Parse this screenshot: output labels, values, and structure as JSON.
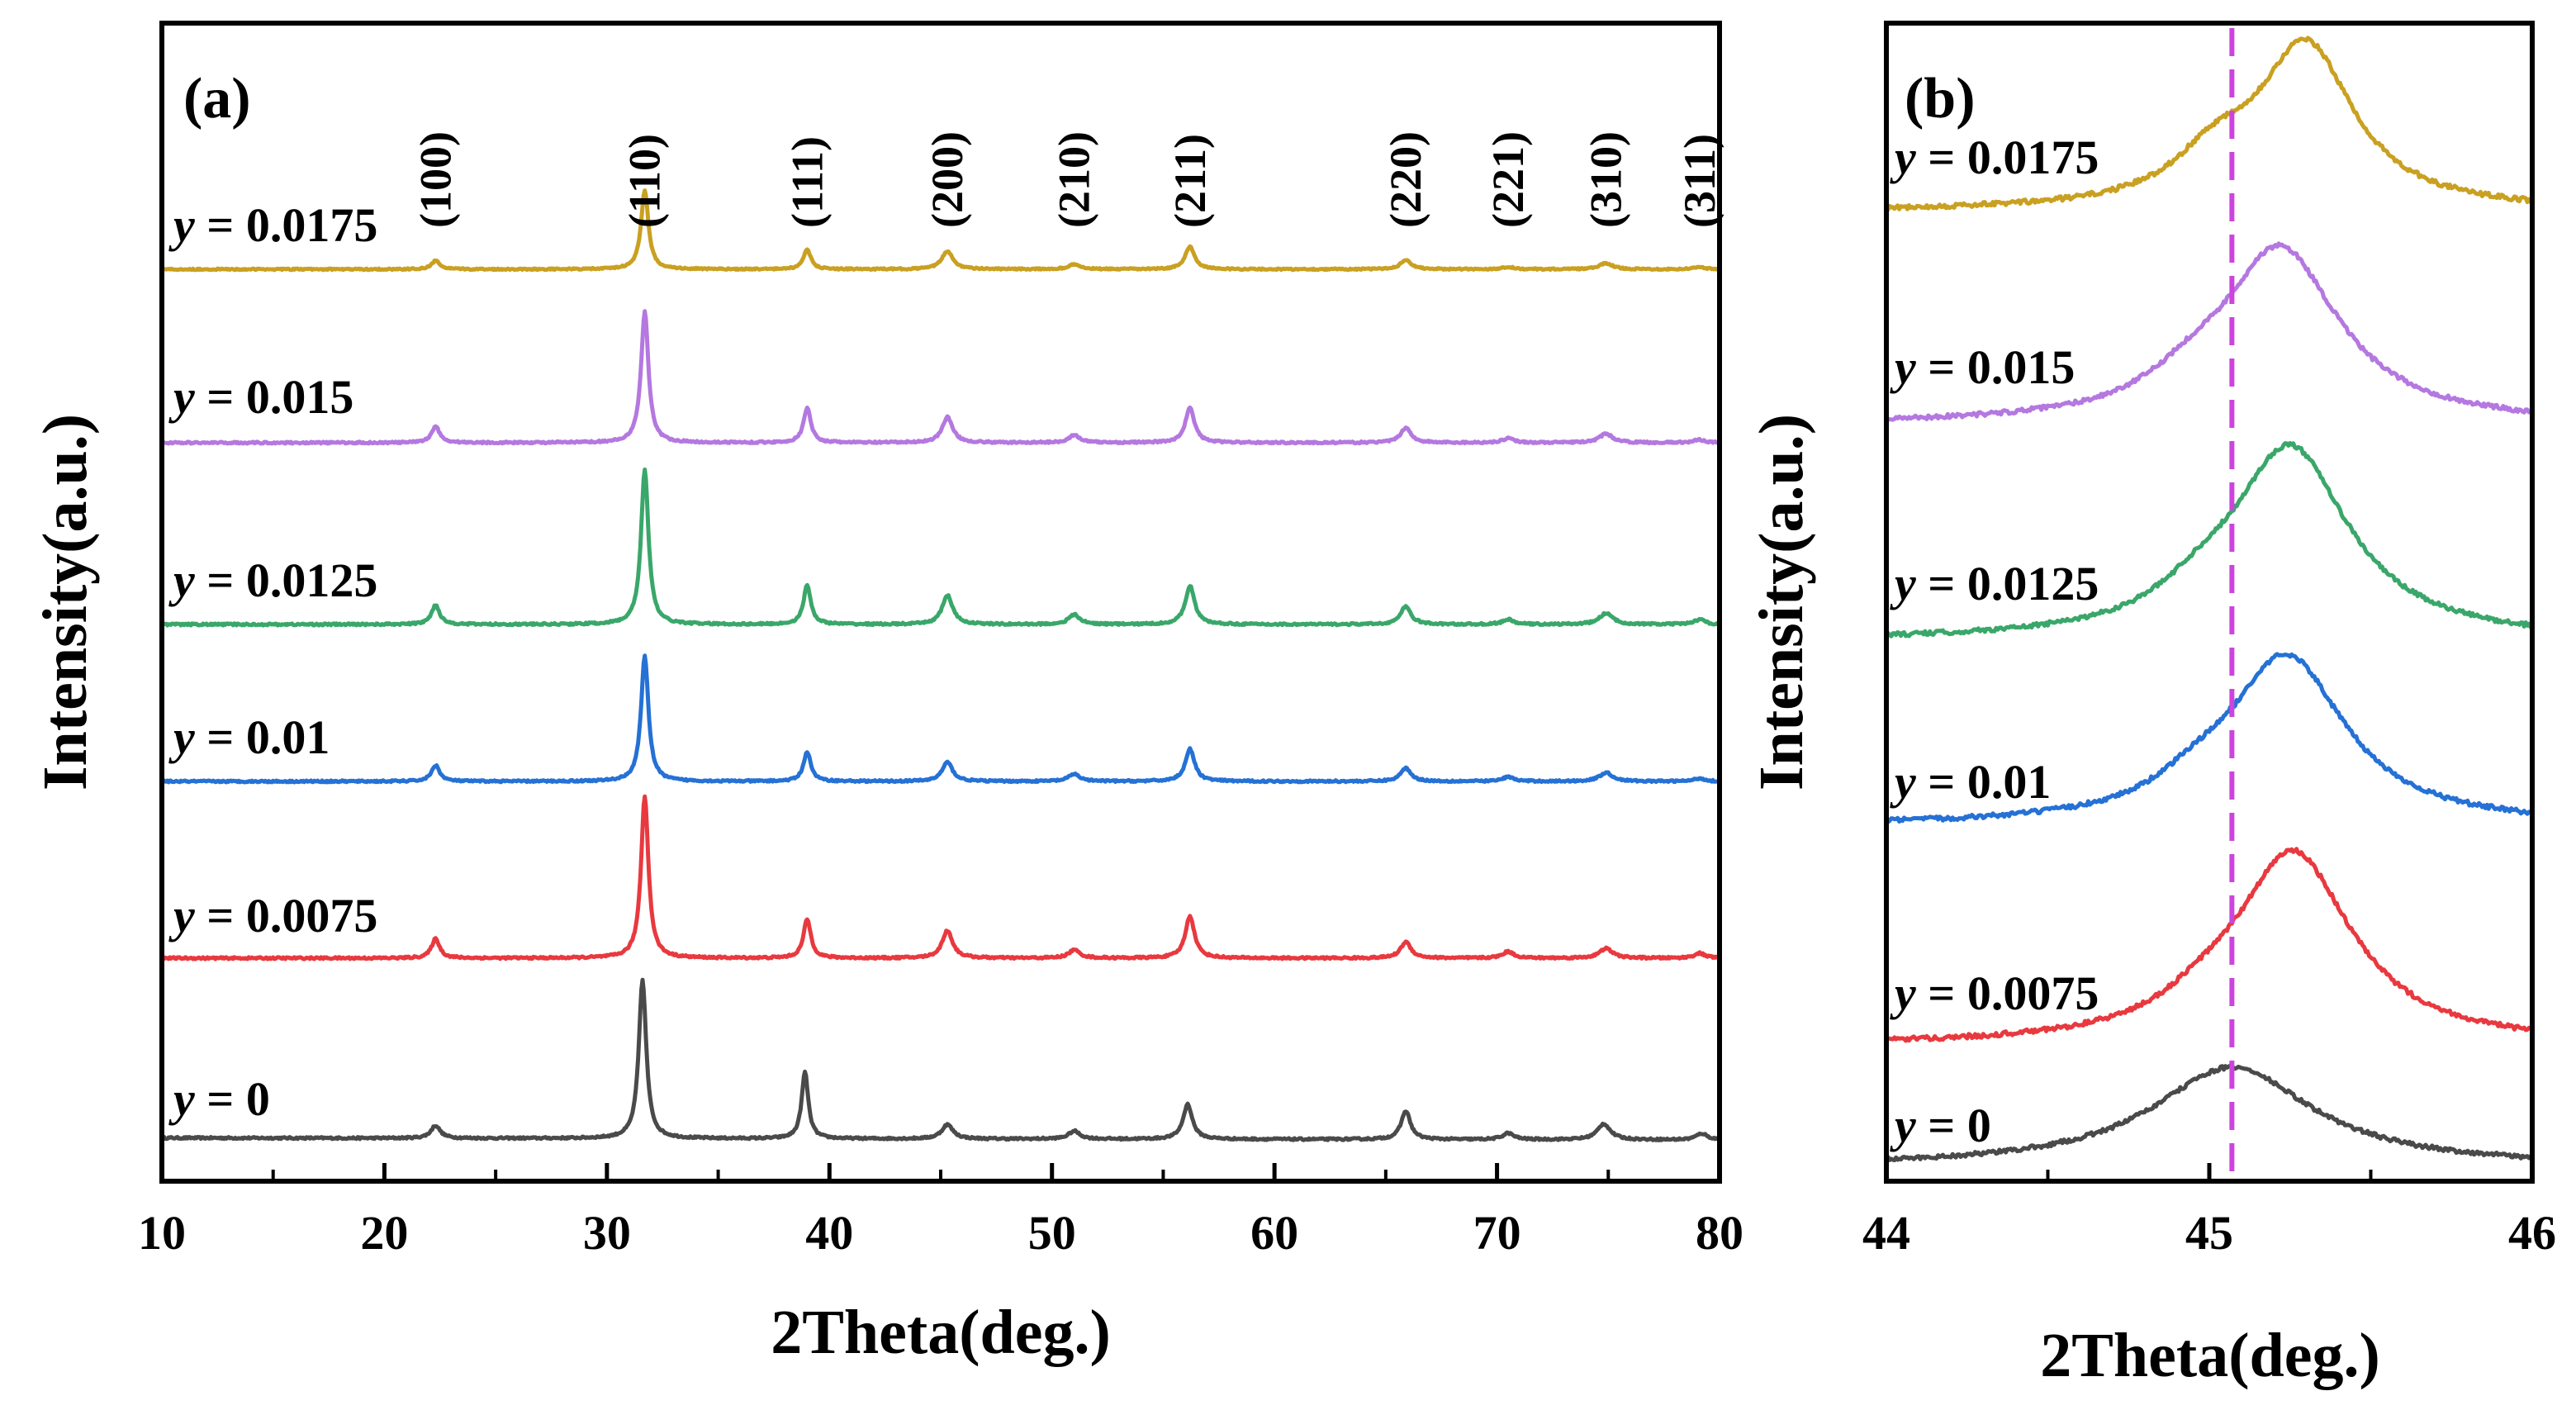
{
  "chart_data": [
    {
      "type": "line",
      "panel_label": "(a)",
      "title": "",
      "xlabel": "2Theta(deg.)",
      "ylabel": "Intensity(a.u.)",
      "xlim": [
        10,
        80
      ],
      "xticks": [
        10,
        20,
        30,
        40,
        50,
        60,
        70,
        80
      ],
      "xtick_labels": [
        "10",
        "20",
        "30",
        "40",
        "50",
        "60",
        "70",
        "80"
      ],
      "y_units": "arbitrary (offset stacked)",
      "series_label_prefix": "y",
      "peak_labels": [
        {
          "hkl": "(100)",
          "x": 22.3
        },
        {
          "hkl": "(110)",
          "x": 31.7
        },
        {
          "hkl": "(111)",
          "x": 39.0
        },
        {
          "hkl": "(200)",
          "x": 45.3
        },
        {
          "hkl": "(210)",
          "x": 51.0
        },
        {
          "hkl": "(211)",
          "x": 56.2
        },
        {
          "hkl": "(220)",
          "x": 65.9
        },
        {
          "hkl": "(221)",
          "x": 70.5
        },
        {
          "hkl": "(310)",
          "x": 74.9
        },
        {
          "hkl": "(311)",
          "x": 79.1
        }
      ],
      "series": [
        {
          "name": "y = 0",
          "value_text": "0",
          "color": "#4a4a4a",
          "baseline": 0.0,
          "slope": 0.05,
          "peaks": [
            [
              22.3,
              0.08,
              0.25
            ],
            [
              31.6,
              1.0,
              0.2
            ],
            [
              38.9,
              0.42,
              0.18
            ],
            [
              45.3,
              0.09,
              0.3
            ],
            [
              51.0,
              0.05,
              0.3
            ],
            [
              56.1,
              0.22,
              0.25
            ],
            [
              65.9,
              0.18,
              0.25
            ],
            [
              70.5,
              0.04,
              0.3
            ],
            [
              74.8,
              0.1,
              0.35
            ],
            [
              79.2,
              0.04,
              0.3
            ]
          ]
        },
        {
          "name": "y = 0.0075",
          "value_text": "0.0075",
          "color": "#e8393f",
          "baseline": 1.0,
          "slope": 0.0,
          "peaks": [
            [
              22.3,
              0.12,
              0.22
            ],
            [
              31.7,
              1.0,
              0.2
            ],
            [
              39.0,
              0.24,
              0.2
            ],
            [
              45.3,
              0.17,
              0.28
            ],
            [
              51.0,
              0.05,
              0.3
            ],
            [
              56.2,
              0.26,
              0.25
            ],
            [
              65.9,
              0.1,
              0.28
            ],
            [
              70.5,
              0.04,
              0.3
            ],
            [
              74.9,
              0.06,
              0.35
            ],
            [
              79.1,
              0.03,
              0.3
            ]
          ]
        },
        {
          "name": "y = 0.01",
          "value_text": "0.01",
          "color": "#2571d5",
          "baseline": 2.0,
          "slope": 0.0,
          "peaks": [
            [
              22.3,
              0.11,
              0.22
            ],
            [
              31.7,
              0.85,
              0.2
            ],
            [
              39.0,
              0.2,
              0.2
            ],
            [
              45.3,
              0.13,
              0.28
            ],
            [
              51.0,
              0.05,
              0.3
            ],
            [
              56.2,
              0.22,
              0.25
            ],
            [
              65.9,
              0.09,
              0.28
            ],
            [
              70.5,
              0.03,
              0.3
            ],
            [
              74.9,
              0.06,
              0.35
            ],
            [
              79.1,
              0.02,
              0.3
            ]
          ]
        },
        {
          "name": "y = 0.0125",
          "value_text": "0.0125",
          "color": "#3aa76a",
          "baseline": 3.0,
          "slope": 0.0,
          "peaks": [
            [
              22.3,
              0.12,
              0.22
            ],
            [
              31.7,
              0.96,
              0.2
            ],
            [
              39.0,
              0.24,
              0.2
            ],
            [
              45.3,
              0.18,
              0.28
            ],
            [
              51.0,
              0.06,
              0.3
            ],
            [
              56.2,
              0.24,
              0.25
            ],
            [
              65.9,
              0.11,
              0.28
            ],
            [
              70.5,
              0.03,
              0.3
            ],
            [
              74.9,
              0.07,
              0.35
            ],
            [
              79.1,
              0.03,
              0.3
            ]
          ]
        },
        {
          "name": "y = 0.015",
          "value_text": "0.015",
          "color": "#b478e0",
          "baseline": 4.0,
          "slope": 0.0,
          "peaks": [
            [
              22.3,
              0.11,
              0.22
            ],
            [
              31.7,
              0.87,
              0.2
            ],
            [
              39.0,
              0.23,
              0.2
            ],
            [
              45.3,
              0.17,
              0.28
            ],
            [
              51.0,
              0.05,
              0.3
            ],
            [
              56.2,
              0.23,
              0.25
            ],
            [
              65.9,
              0.1,
              0.28
            ],
            [
              70.5,
              0.03,
              0.3
            ],
            [
              74.9,
              0.06,
              0.35
            ],
            [
              79.1,
              0.02,
              0.3
            ]
          ]
        },
        {
          "name": "y = 0.0175",
          "value_text": "0.0175",
          "color": "#c9a021",
          "baseline": 5.0,
          "slope": 0.0,
          "peaks": [
            [
              22.3,
              0.07,
              0.22
            ],
            [
              31.7,
              0.65,
              0.2
            ],
            [
              39.0,
              0.16,
              0.2
            ],
            [
              45.3,
              0.15,
              0.3
            ],
            [
              51.0,
              0.04,
              0.3
            ],
            [
              56.2,
              0.19,
              0.25
            ],
            [
              65.9,
              0.08,
              0.28
            ],
            [
              70.5,
              0.02,
              0.3
            ],
            [
              74.9,
              0.05,
              0.35
            ],
            [
              79.1,
              0.02,
              0.3
            ]
          ]
        }
      ]
    },
    {
      "type": "line",
      "panel_label": "(b)",
      "title": "",
      "xlabel": "2Theta(deg.)",
      "ylabel": "Intensity(a.u.)",
      "xlim": [
        44,
        46
      ],
      "xticks": [
        44,
        45,
        46
      ],
      "xtick_labels": [
        "44",
        "45",
        "46"
      ],
      "reference_line": {
        "x": 45.07,
        "color": "#cc44dd",
        "style": "dashed"
      },
      "y_units": "arbitrary (offset stacked)",
      "series_label_prefix": "y",
      "series": [
        {
          "name": "y = 0",
          "value_text": "0",
          "color": "#4a4a4a",
          "baseline": 0.0,
          "peak_center": 45.07,
          "peak_height": 0.6,
          "peak_width": 0.3,
          "tail": 0.0
        },
        {
          "name": "y = 0.0075",
          "value_text": "0.0075",
          "color": "#e8393f",
          "baseline": 1.0,
          "peak_center": 45.26,
          "peak_height": 1.05,
          "peak_width": 0.22,
          "tail": 0.06
        },
        {
          "name": "y = 0.01",
          "value_text": "0.01",
          "color": "#2571d5",
          "baseline": 2.0,
          "peak_center": 45.24,
          "peak_height": 0.92,
          "peak_width": 0.22,
          "tail": 0.07
        },
        {
          "name": "y = 0.0125",
          "value_text": "0.0125",
          "color": "#3aa76a",
          "baseline": 3.0,
          "peak_center": 45.25,
          "peak_height": 1.1,
          "peak_width": 0.22,
          "tail": 0.08
        },
        {
          "name": "y = 0.015",
          "value_text": "0.015",
          "color": "#b478e0",
          "baseline": 4.0,
          "peak_center": 45.22,
          "peak_height": 1.0,
          "peak_width": 0.22,
          "tail": 0.08
        },
        {
          "name": "y = 0.0175",
          "value_text": "0.0175",
          "color": "#c9a021",
          "baseline": 5.0,
          "peak_center": 45.3,
          "peak_height": 0.85,
          "peak_width": 0.18,
          "tail": 0.14
        }
      ]
    }
  ]
}
